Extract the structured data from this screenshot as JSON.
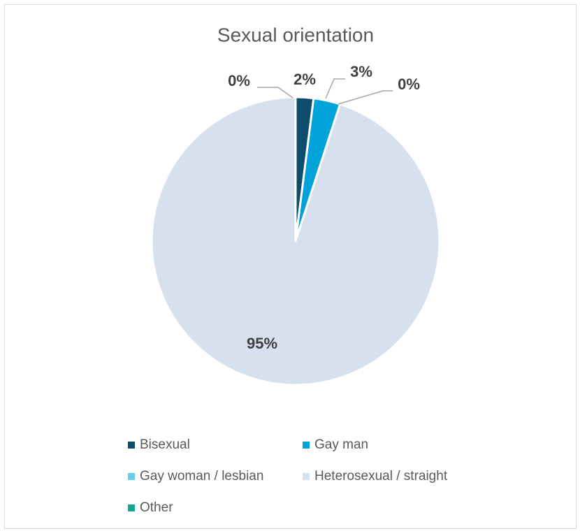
{
  "chart_data": {
    "type": "pie",
    "title": "Sexual orientation",
    "categories": [
      "Bisexual",
      "Gay man",
      "Gay woman / lesbian",
      "Heterosexual / straight",
      "Other"
    ],
    "values": [
      2,
      3,
      0,
      95,
      0
    ],
    "value_labels": [
      "2%",
      "3%",
      "0%",
      "95%",
      "0%"
    ],
    "colors": [
      "#0f4c6b",
      "#00a3d9",
      "#66cdf2",
      "#d6e1ed",
      "#17a596"
    ],
    "legend": "bottom"
  }
}
